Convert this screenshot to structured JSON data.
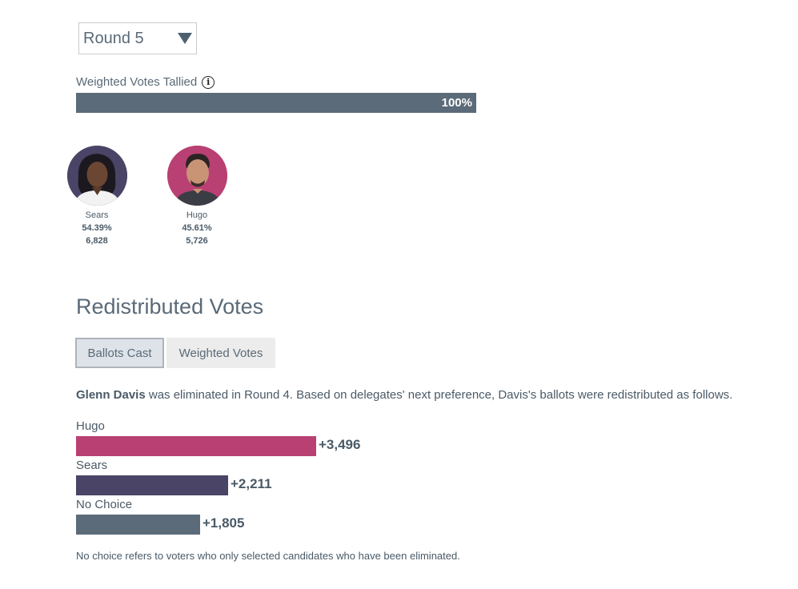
{
  "round_select": {
    "value": "Round 5"
  },
  "tally": {
    "label": "Weighted Votes Tallied",
    "info_icon": "info-icon",
    "percent_text": "100%",
    "fraction": 1.0
  },
  "candidates": [
    {
      "name": "Sears",
      "percent": "54.39%",
      "votes": "6,828",
      "color": "#4a4466"
    },
    {
      "name": "Hugo",
      "percent": "45.61%",
      "votes": "5,726",
      "color": "#b84072"
    }
  ],
  "redistributed": {
    "title": "Redistributed Votes",
    "tabs": [
      "Ballots Cast",
      "Weighted Votes"
    ],
    "active_tab": "Ballots Cast",
    "explanation_name": "Glenn Davis",
    "explanation_rest": " was eliminated in Round 4. Based on delegates' next preference, Davis's ballots were redistributed as follows.",
    "rows": [
      {
        "label": "Hugo",
        "value": 3496,
        "value_text": "+3,496",
        "color": "#b84072"
      },
      {
        "label": "Sears",
        "value": 2211,
        "value_text": "+2,211",
        "color": "#4a4466"
      },
      {
        "label": "No Choice",
        "value": 1805,
        "value_text": "+1,805",
        "color": "#5b6b79"
      }
    ],
    "footnote": "No choice refers to voters who only selected candidates who have been eliminated."
  }
}
